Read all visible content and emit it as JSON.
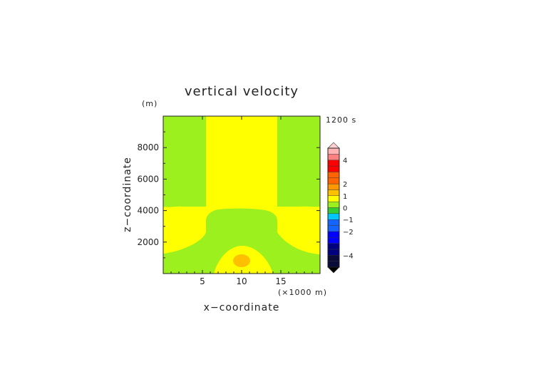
{
  "chart_data": {
    "type": "heatmap",
    "title": "vertical velocity",
    "xlabel": "x−coordinate",
    "ylabel": "z−coordinate",
    "x_unit": "(×1000 m)",
    "y_unit": "(m)",
    "time_label": "1200 s",
    "xlim": [
      0,
      20
    ],
    "ylim": [
      0,
      10000
    ],
    "x_ticks": [
      5,
      10,
      15
    ],
    "x_tick_labels": [
      "5",
      "10",
      "15"
    ],
    "y_ticks": [
      2000,
      4000,
      6000,
      8000
    ],
    "y_tick_labels": [
      "2000",
      "4000",
      "6000",
      "8000"
    ],
    "colorbar": {
      "levels": [
        -5,
        -4.5,
        -4,
        -3.5,
        -3,
        -2.5,
        -2,
        -1.5,
        -1,
        -0.5,
        0,
        0.5,
        1,
        1.5,
        2,
        2.5,
        3,
        3.5,
        4,
        4.5,
        5
      ],
      "tick_values": [
        -4,
        -2,
        -1,
        0,
        1,
        2,
        4
      ],
      "tick_labels": [
        "−4",
        "−2",
        "−1",
        "0",
        "1",
        "2",
        "4"
      ],
      "extend": "both"
    },
    "colors": {
      "band_m5": "#0b0b3a",
      "band_m4": "#000080",
      "band_m3": "#0000ff",
      "band_m2": "#1464ff",
      "band_m1": "#00c8ff",
      "band_0_neg": "#32cd32",
      "band_0_pos": "#9cf01e",
      "band_0_5": "#ffff00",
      "band_1": "#ffc000",
      "band_1_5": "#ff9800",
      "band_2": "#ff6400",
      "band_3": "#ff0000",
      "band_4": "#ff8080",
      "band_5": "#ffb4b4",
      "over": "#ffd0d0",
      "under": "#000000",
      "field_green": "#9cf01e",
      "field_yellow": "#ffff00",
      "field_orange": "#ffc000"
    },
    "regions": [
      {
        "level": "0 to 0.5",
        "color": "green",
        "description": "outer columns above 4300 m and lower corners"
      },
      {
        "level": "0.5 to 1",
        "color": "yellow",
        "description": "central updraft column and low-level band"
      },
      {
        "level": "0 to 0.5",
        "color": "green",
        "description": "mid-level dome 1000-4200 m"
      },
      {
        "level": "1 to 1.5",
        "color": "orange",
        "description": "core near x=10 km, z=800 m"
      }
    ]
  }
}
